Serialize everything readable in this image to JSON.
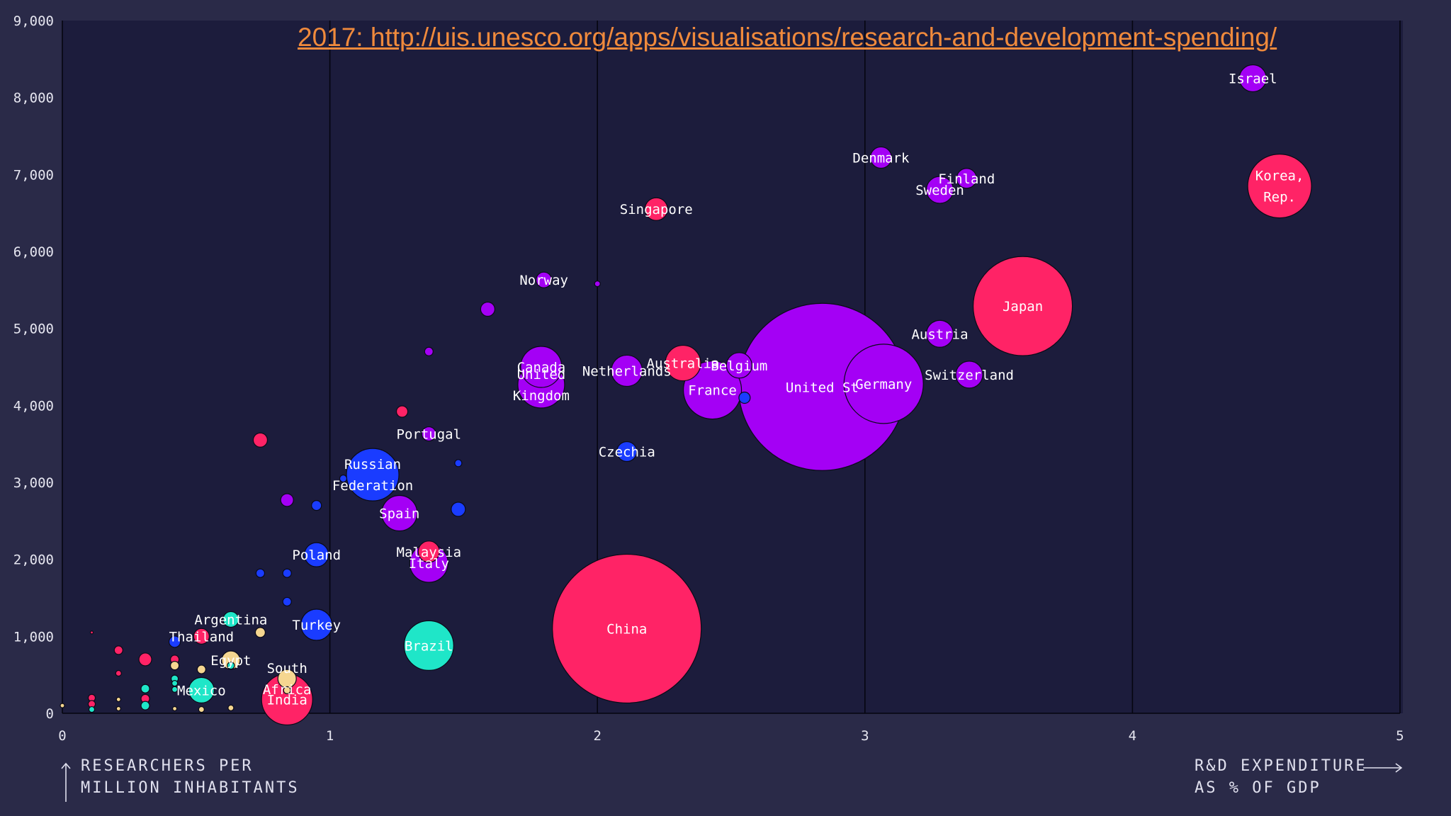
{
  "source_link": "2017: http://uis.unesco.org/apps/visualisations/research-and-development-spending/",
  "ylabel": "RESEARCHERS PER\nMILLION INHABITANTS",
  "xlabel": "R&D EXPENDITURE\nAS % OF GDP",
  "colors": {
    "background": "#2a2a48",
    "plot_bg": "#1c1c3c",
    "purple": "#a400f5",
    "pink": "#ff2366",
    "blue": "#1a3cff",
    "teal": "#1fe6c8",
    "beige": "#f5d690"
  },
  "chart_data": {
    "type": "scatter",
    "variant": "bubble",
    "xlim": [
      0,
      5
    ],
    "ylim": [
      0,
      9000
    ],
    "x_ticks": [
      "0",
      "1",
      "2",
      "3",
      "4",
      "5"
    ],
    "y_ticks": [
      "0",
      "1,000",
      "2,000",
      "3,000",
      "4,000",
      "5,000",
      "6,000",
      "7,000",
      "8,000",
      "9,000"
    ],
    "grid": "vertical",
    "points": [
      {
        "label": "China",
        "x": 2.11,
        "y": 1100,
        "size": 105,
        "color": "pink"
      },
      {
        "label": "United St",
        "x": 2.84,
        "y": 4240,
        "size": 118,
        "color": "purple"
      },
      {
        "label": "Japan",
        "x": 3.59,
        "y": 5290,
        "size": 70,
        "color": "pink"
      },
      {
        "label": "Germany",
        "x": 3.07,
        "y": 4280,
        "size": 56,
        "color": "purple"
      },
      {
        "label": "Korea,\nRep.",
        "x": 4.55,
        "y": 6850,
        "size": 45,
        "color": "pink"
      },
      {
        "label": "France",
        "x": 2.43,
        "y": 4200,
        "size": 41,
        "color": "purple"
      },
      {
        "label": "United\nKingdom",
        "x": 1.79,
        "y": 4270,
        "size": 33,
        "color": "purple"
      },
      {
        "label": "Brazil",
        "x": 1.37,
        "y": 880,
        "size": 35,
        "color": "teal"
      },
      {
        "label": "India",
        "x": 0.84,
        "y": 180,
        "size": 36,
        "color": "pink"
      },
      {
        "label": "Russian\nFederation",
        "x": 1.16,
        "y": 3100,
        "size": 37,
        "color": "blue"
      },
      {
        "label": "Italy",
        "x": 1.37,
        "y": 1950,
        "size": 27,
        "color": "purple"
      },
      {
        "label": "Canada",
        "x": 1.79,
        "y": 4500,
        "size": 29,
        "color": "purple"
      },
      {
        "label": "Spain",
        "x": 1.26,
        "y": 2600,
        "size": 25,
        "color": "purple"
      },
      {
        "label": "Australia",
        "x": 2.32,
        "y": 4550,
        "size": 25,
        "color": "pink"
      },
      {
        "label": "Netherlands",
        "x": 2.11,
        "y": 4450,
        "size": 22,
        "color": "purple"
      },
      {
        "label": "Turkey",
        "x": 0.95,
        "y": 1150,
        "size": 22,
        "color": "blue"
      },
      {
        "label": "Switzerland",
        "x": 3.39,
        "y": 4400,
        "size": 19,
        "color": "purple"
      },
      {
        "label": "Austria",
        "x": 3.28,
        "y": 4930,
        "size": 19,
        "color": "purple"
      },
      {
        "label": "Belgium",
        "x": 2.53,
        "y": 4520,
        "size": 18,
        "color": "purple"
      },
      {
        "label": "Sweden",
        "x": 3.28,
        "y": 6800,
        "size": 19,
        "color": "purple"
      },
      {
        "label": "Poland",
        "x": 0.95,
        "y": 2060,
        "size": 17,
        "color": "blue"
      },
      {
        "label": "Mexico",
        "x": 0.52,
        "y": 300,
        "size": 18,
        "color": "teal"
      },
      {
        "label": "Israel",
        "x": 4.45,
        "y": 8250,
        "size": 19,
        "color": "purple"
      },
      {
        "label": "Singapore",
        "x": 2.22,
        "y": 6550,
        "size": 16,
        "color": "pink"
      },
      {
        "label": "Malaysia",
        "x": 1.37,
        "y": 2100,
        "size": 15,
        "color": "pink"
      },
      {
        "label": "Denmark",
        "x": 3.06,
        "y": 7220,
        "size": 15,
        "color": "purple"
      },
      {
        "label": "Finland",
        "x": 3.38,
        "y": 6950,
        "size": 14,
        "color": "purple"
      },
      {
        "label": "Czechia",
        "x": 2.11,
        "y": 3400,
        "size": 14,
        "color": "blue"
      },
      {
        "label": "South\nAfrica",
        "x": 0.84,
        "y": 450,
        "size": 13,
        "color": "beige"
      },
      {
        "label": "Egypt",
        "x": 0.63,
        "y": 690,
        "size": 13,
        "color": "beige"
      },
      {
        "label": "Argentina",
        "x": 0.63,
        "y": 1220,
        "size": 11,
        "color": "teal"
      },
      {
        "label": "Thailand",
        "x": 0.52,
        "y": 1000,
        "size": 11,
        "color": "pink"
      },
      {
        "label": "Norway",
        "x": 1.8,
        "y": 5630,
        "size": 11,
        "color": "purple"
      },
      {
        "label": "Portugal",
        "x": 1.37,
        "y": 3630,
        "size": 10,
        "color": "purple"
      },
      {
        "label": "",
        "x": 1.59,
        "y": 5250,
        "size": 10,
        "color": "purple"
      },
      {
        "label": "",
        "x": 1.48,
        "y": 2650,
        "size": 10,
        "color": "blue"
      },
      {
        "label": "",
        "x": 0.74,
        "y": 3550,
        "size": 10,
        "color": "pink"
      },
      {
        "label": "",
        "x": 1.27,
        "y": 3920,
        "size": 8,
        "color": "pink"
      },
      {
        "label": "",
        "x": 0.84,
        "y": 2770,
        "size": 9,
        "color": "purple"
      },
      {
        "label": "",
        "x": 0.95,
        "y": 2700,
        "size": 7,
        "color": "blue"
      },
      {
        "label": "",
        "x": 2.55,
        "y": 4100,
        "size": 8,
        "color": "blue"
      },
      {
        "label": "",
        "x": 1.37,
        "y": 4700,
        "size": 6,
        "color": "purple"
      },
      {
        "label": "",
        "x": 1.48,
        "y": 3250,
        "size": 5,
        "color": "blue"
      },
      {
        "label": "",
        "x": 2.0,
        "y": 5580,
        "size": 4,
        "color": "purple"
      },
      {
        "label": "",
        "x": 1.05,
        "y": 3050,
        "size": 5,
        "color": "blue"
      },
      {
        "label": "",
        "x": 0.74,
        "y": 1820,
        "size": 6,
        "color": "blue"
      },
      {
        "label": "",
        "x": 0.84,
        "y": 1820,
        "size": 6,
        "color": "blue"
      },
      {
        "label": "",
        "x": 0.84,
        "y": 1450,
        "size": 6,
        "color": "blue"
      },
      {
        "label": "",
        "x": 0.42,
        "y": 930,
        "size": 8,
        "color": "blue"
      },
      {
        "label": "",
        "x": 0.74,
        "y": 1050,
        "size": 7,
        "color": "beige"
      },
      {
        "label": "",
        "x": 0.21,
        "y": 820,
        "size": 6,
        "color": "pink"
      },
      {
        "label": "",
        "x": 0.31,
        "y": 700,
        "size": 9,
        "color": "pink"
      },
      {
        "label": "",
        "x": 0.42,
        "y": 700,
        "size": 6,
        "color": "pink"
      },
      {
        "label": "",
        "x": 0.42,
        "y": 620,
        "size": 6,
        "color": "beige"
      },
      {
        "label": "",
        "x": 0.52,
        "y": 570,
        "size": 6,
        "color": "beige"
      },
      {
        "label": "",
        "x": 0.21,
        "y": 520,
        "size": 4,
        "color": "pink"
      },
      {
        "label": "",
        "x": 0.42,
        "y": 450,
        "size": 5,
        "color": "teal"
      },
      {
        "label": "",
        "x": 0.42,
        "y": 390,
        "size": 4,
        "color": "teal"
      },
      {
        "label": "",
        "x": 0.31,
        "y": 320,
        "size": 6,
        "color": "teal"
      },
      {
        "label": "",
        "x": 0.42,
        "y": 310,
        "size": 4,
        "color": "teal"
      },
      {
        "label": "",
        "x": 0.31,
        "y": 190,
        "size": 6,
        "color": "pink"
      },
      {
        "label": "",
        "x": 0.31,
        "y": 100,
        "size": 6,
        "color": "teal"
      },
      {
        "label": "",
        "x": 0.11,
        "y": 200,
        "size": 5,
        "color": "pink"
      },
      {
        "label": "",
        "x": 0.11,
        "y": 120,
        "size": 5,
        "color": "pink"
      },
      {
        "label": "",
        "x": 0.11,
        "y": 50,
        "size": 4,
        "color": "teal"
      },
      {
        "label": "",
        "x": 0.21,
        "y": 180,
        "size": 3,
        "color": "beige"
      },
      {
        "label": "",
        "x": 0.21,
        "y": 60,
        "size": 3,
        "color": "beige"
      },
      {
        "label": "",
        "x": 0.42,
        "y": 60,
        "size": 3,
        "color": "beige"
      },
      {
        "label": "",
        "x": 0.52,
        "y": 50,
        "size": 4,
        "color": "beige"
      },
      {
        "label": "",
        "x": 0.63,
        "y": 70,
        "size": 4,
        "color": "beige"
      },
      {
        "label": "",
        "x": 0.63,
        "y": 620,
        "size": 5,
        "color": "teal"
      },
      {
        "label": "",
        "x": 0.84,
        "y": 300,
        "size": 5,
        "color": "beige"
      },
      {
        "label": "",
        "x": 0.0,
        "y": 100,
        "size": 3,
        "color": "beige"
      },
      {
        "label": "",
        "x": 0.11,
        "y": 1050,
        "size": 2,
        "color": "pink"
      }
    ]
  }
}
